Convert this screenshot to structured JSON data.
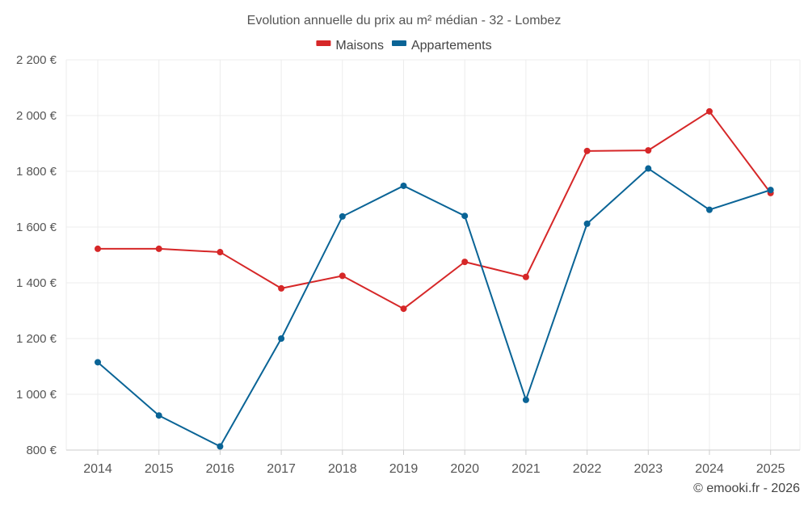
{
  "chart_data": {
    "type": "line",
    "title": "Evolution annuelle du prix au m² médian - 32 - Lombez",
    "categories": [
      "2014",
      "2015",
      "2016",
      "2017",
      "2018",
      "2019",
      "2020",
      "2021",
      "2022",
      "2023",
      "2024",
      "2025"
    ],
    "series": [
      {
        "name": "Maisons",
        "color": "#d62728",
        "values": [
          1522,
          1522,
          1510,
          1380,
          1425,
          1307,
          1475,
          1421,
          1873,
          1875,
          2015,
          1722
        ]
      },
      {
        "name": "Appartements",
        "color": "#0a6496",
        "values": [
          1115,
          924,
          813,
          1200,
          1638,
          1748,
          1640,
          980,
          1612,
          1810,
          1662,
          1733
        ]
      }
    ],
    "ylim": [
      800,
      2200
    ],
    "yticks": [
      800,
      1000,
      1200,
      1400,
      1600,
      1800,
      2000,
      2200
    ],
    "ytick_labels": [
      "800 €",
      "1 000 €",
      "1 200 €",
      "1 400 €",
      "1 600 €",
      "1 800 €",
      "2 000 €",
      "2 200 €"
    ],
    "xlabel": "",
    "ylabel": "",
    "grid": true,
    "legend_position": "top-center"
  },
  "credit": "© emooki.fr - 2026"
}
